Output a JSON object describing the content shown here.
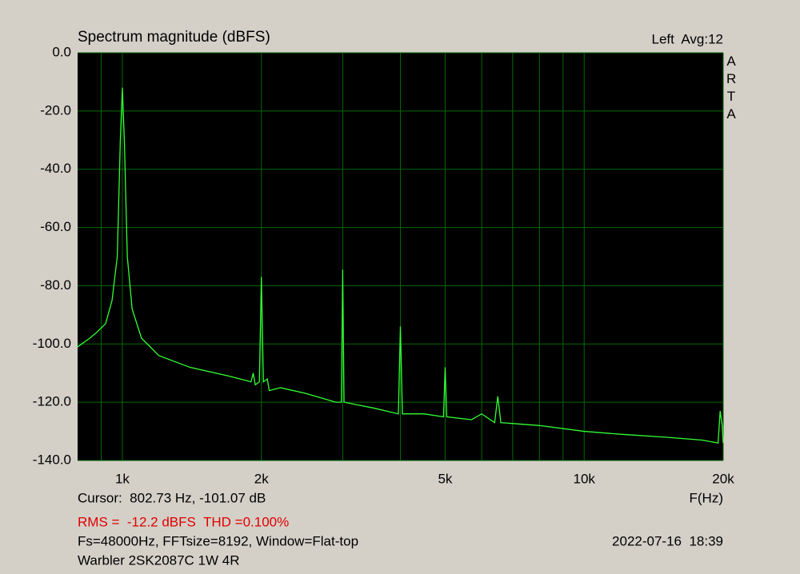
{
  "chart_data": {
    "type": "line",
    "title": "Spectrum magnitude (dBFS)",
    "channel_info": "Left  Avg:12",
    "side_label": "ARTA",
    "xlabel": "F(Hz)",
    "xscale": "log",
    "grid": true,
    "xlim": [
      800,
      20000
    ],
    "ylim": [
      -140,
      0
    ],
    "xticks": [
      {
        "value": 1000,
        "label": "1k"
      },
      {
        "value": 2000,
        "label": "2k"
      },
      {
        "value": 5000,
        "label": "5k"
      },
      {
        "value": 10000,
        "label": "10k"
      },
      {
        "value": 20000,
        "label": "20k"
      }
    ],
    "x_minor_ticks": [
      900,
      3000,
      4000,
      6000,
      7000,
      8000,
      9000
    ],
    "yticks": [
      {
        "value": 0,
        "label": "0.0"
      },
      {
        "value": -20,
        "label": "-20.0"
      },
      {
        "value": -40,
        "label": "-40.0"
      },
      {
        "value": -60,
        "label": "-60.0"
      },
      {
        "value": -80,
        "label": "-80.0"
      },
      {
        "value": -100,
        "label": "-100.0"
      },
      {
        "value": -120,
        "label": "-120.0"
      },
      {
        "value": -140,
        "label": "-140.0"
      }
    ],
    "x": [
      800,
      850,
      880,
      920,
      950,
      975,
      990,
      1000,
      1010,
      1025,
      1050,
      1100,
      1200,
      1400,
      1700,
      1900,
      1920,
      1940,
      1980,
      2000,
      2020,
      2060,
      2080,
      2200,
      2500,
      2900,
      2980,
      3000,
      3020,
      3500,
      3960,
      4000,
      4040,
      4500,
      4960,
      5000,
      5040,
      5700,
      6000,
      6400,
      6500,
      6600,
      8000,
      10000,
      12000,
      15000,
      18000,
      19500,
      19700,
      19900,
      20000
    ],
    "series": [
      {
        "color": "#33ff33",
        "values": [
          -101,
          -98,
          -96,
          -93,
          -85,
          -70,
          -30,
          -12,
          -30,
          -70,
          -88,
          -98,
          -104,
          -108,
          -111,
          -113,
          -110,
          -114,
          -113,
          -77,
          -113,
          -112,
          -116,
          -115,
          -117,
          -120,
          -120,
          -74.5,
          -120,
          -122,
          -124,
          -94,
          -124,
          -124,
          -125,
          -108,
          -125,
          -126,
          -124,
          -127,
          -118,
          -127,
          -128,
          -130,
          -131,
          -132,
          -133,
          -134,
          -123,
          -128,
          -134
        ]
      }
    ],
    "cursor": "Cursor:  802.73 Hz, -101.07 dB",
    "measurement": "RMS =  -12.2 dBFS  THD =0.100%",
    "measurement_color": "#e00000",
    "settings": "Fs=48000Hz, FFTsize=8192, Window=Flat-top",
    "timestamp": "2022-07-16  18:39",
    "device": "Warbler 2SK2087C 1W 4R"
  }
}
